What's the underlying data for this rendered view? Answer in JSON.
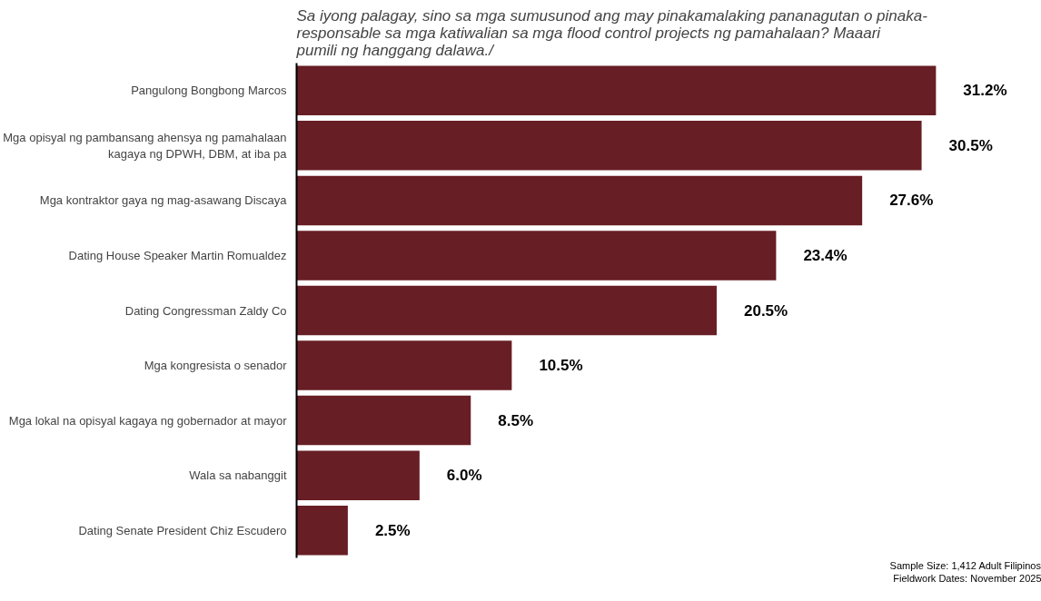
{
  "chart_data": {
    "type": "bar",
    "orientation": "horizontal",
    "subtitle": "Sa iyong palagay, sino sa mga sumusunod ang may pinakamalaking pananagutan o pinaka-responsable sa mga katiwalian sa mga flood control projects ng pamahalaan? Maaari pumili ng hanggang dalawa./",
    "categories": [
      "Pangulong Bongbong Marcos",
      "Mga opisyal ng pambansang ahensya ng pamahalaan\nkagaya ng DPWH, DBM, at iba pa",
      "Mga kontraktor gaya ng mag-asawang Discaya",
      "Dating House Speaker Martin Romualdez",
      "Dating Congressman Zaldy Co",
      "Mga kongresista o senador",
      "Mga lokal na opisyal kagaya ng gobernador at mayor",
      "Wala sa nabanggit",
      "Dating Senate President Chiz Escudero"
    ],
    "values": [
      31.2,
      30.5,
      27.6,
      23.4,
      20.5,
      10.5,
      8.5,
      6.0,
      2.5
    ],
    "value_labels": [
      "31.2%",
      "30.5%",
      "27.6%",
      "23.4%",
      "20.5%",
      "10.5%",
      "8.5%",
      "6.0%",
      "2.5%"
    ],
    "color": "#671e24",
    "tick_labels": "y",
    "grid": false,
    "legend": false,
    "annotations": [
      "Sample Size: 1,412 Adult Filipinos",
      "Fieldwork Dates: November 2025"
    ]
  }
}
